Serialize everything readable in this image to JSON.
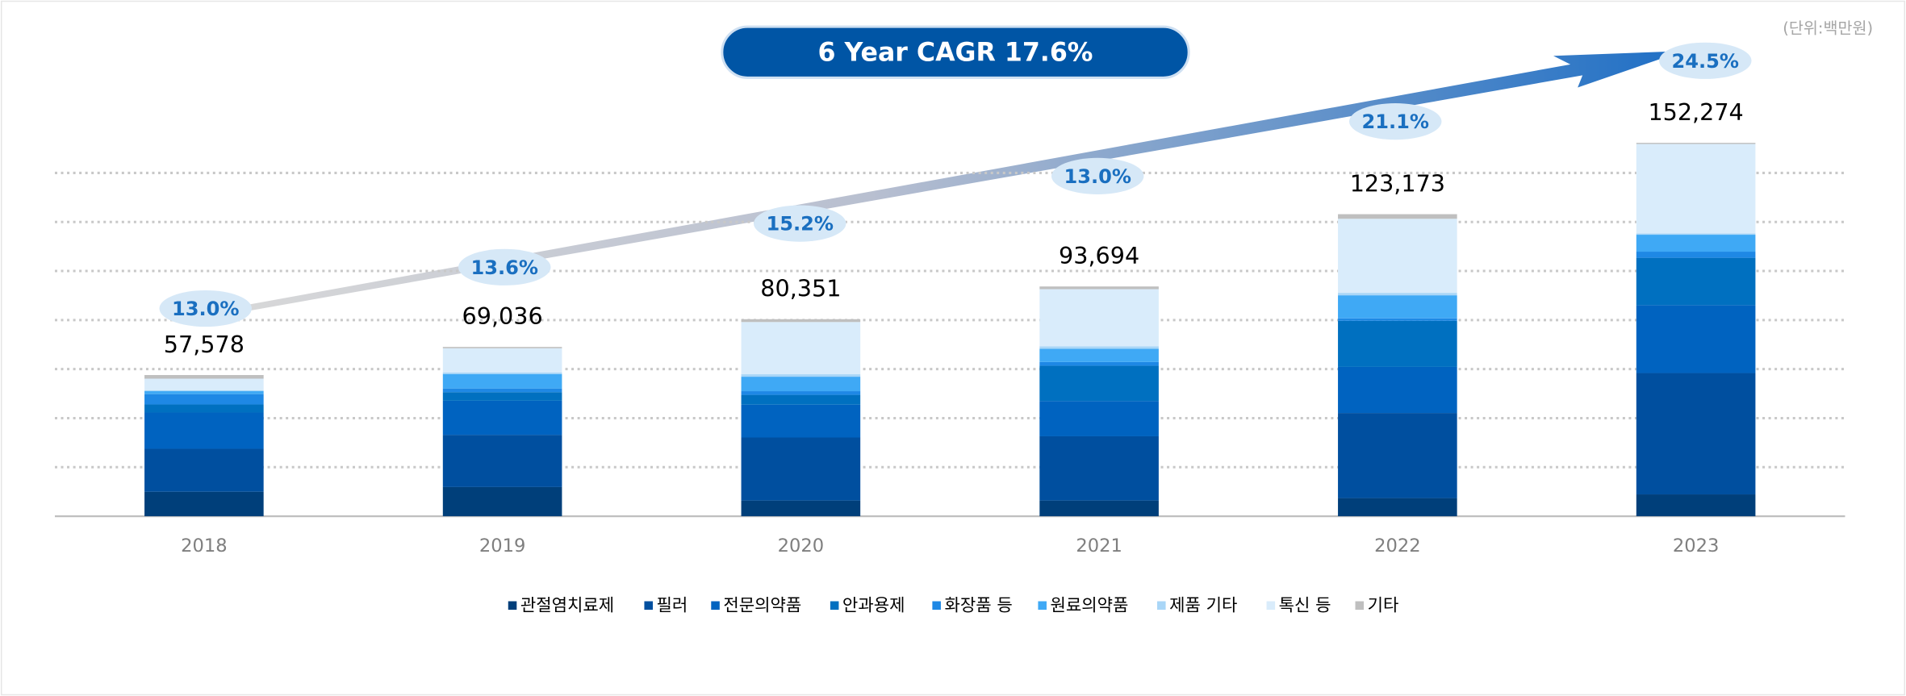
{
  "chart_data": {
    "type": "stacked_bar",
    "title": "6 Year CAGR 17.6%",
    "unit_label": "(단위:백만원)",
    "categories": [
      "2018",
      "2019",
      "2020",
      "2021",
      "2022",
      "2023"
    ],
    "series": [
      {
        "name": "관절염치료제",
        "color": "#003f7a",
        "values": [
          10000,
          11900,
          6400,
          6400,
          7400,
          8900
        ]
      },
      {
        "name": "필러",
        "color": "#004f9f",
        "values": [
          17500,
          21300,
          25700,
          26200,
          34700,
          49500
        ]
      },
      {
        "name": "전문의약품",
        "color": "#0063c0",
        "values": [
          14800,
          13900,
          13400,
          14400,
          18800,
          27700
        ]
      },
      {
        "name": "안과용제",
        "color": "#0070c0",
        "values": [
          3300,
          3500,
          4000,
          14400,
          18800,
          19300
        ]
      },
      {
        "name": "화장품 등",
        "color": "#1e88e5",
        "values": [
          4200,
          1500,
          1500,
          1500,
          1000,
          2500
        ]
      },
      {
        "name": "원료의약품",
        "color": "#3fa9f5",
        "values": [
          1200,
          5900,
          5900,
          5400,
          9400,
          6900
        ]
      },
      {
        "name": "제품 기타",
        "color": "#a9d6f7",
        "values": [
          400,
          600,
          1000,
          1000,
          1000,
          500
        ]
      },
      {
        "name": "톡신 등",
        "color": "#d9ecfb",
        "values": [
          4700,
          9900,
          21300,
          23300,
          30200,
          36500
        ]
      },
      {
        "name": "기타",
        "color": "#bfbfbf",
        "values": [
          1478,
          536,
          1151,
          1094,
          1873,
          474
        ]
      }
    ],
    "totals": [
      57578,
      69036,
      80351,
      93694,
      123173,
      152274
    ],
    "total_labels": [
      "57,578",
      "69,036",
      "80,351",
      "93,694",
      "123,173",
      "152,274"
    ],
    "growth_labels": [
      "13.0%",
      "13.6%",
      "15.2%",
      "13.0%",
      "21.1%",
      "24.5%"
    ],
    "ylim": [
      0,
      160000
    ],
    "yticks": [
      20000,
      40000,
      60000,
      80000,
      100000,
      120000,
      140000
    ],
    "grid": true
  }
}
